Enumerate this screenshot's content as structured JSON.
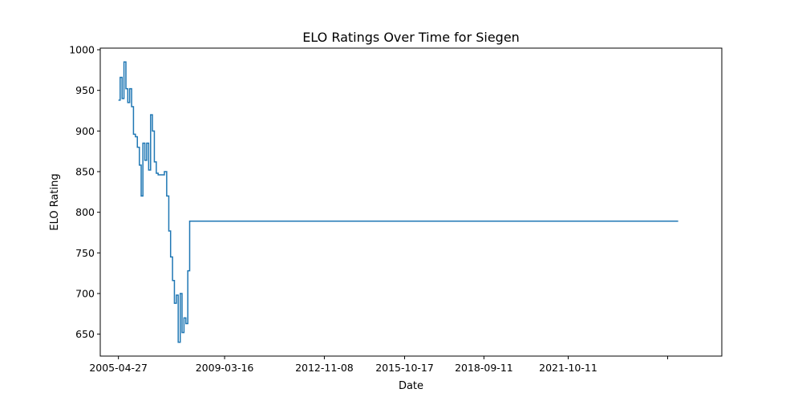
{
  "chart_data": {
    "type": "line",
    "title": "ELO Ratings Over Time for Siegen",
    "xlabel": "Date",
    "ylabel": "ELO Rating",
    "x_ticks": [
      "2005-04-27",
      "2009-03-16",
      "2012-11-08",
      "2015-10-17",
      "2018-09-11",
      "2021-10-11",
      ""
    ],
    "y_ticks": [
      650,
      700,
      750,
      800,
      850,
      900,
      950,
      1000
    ],
    "xlim": [
      "2004-08-27",
      "2027-05-26"
    ],
    "ylim": [
      623,
      1002
    ],
    "grid": false,
    "step": "post",
    "series": [
      {
        "name": "",
        "color": "#1f77b4",
        "points": [
          [
            "2005-04-27",
            938
          ],
          [
            "2005-05-20",
            966
          ],
          [
            "2005-06-15",
            940
          ],
          [
            "2005-07-10",
            985
          ],
          [
            "2005-08-05",
            952
          ],
          [
            "2005-08-30",
            935
          ],
          [
            "2005-09-24",
            952
          ],
          [
            "2005-10-20",
            930
          ],
          [
            "2005-11-14",
            896
          ],
          [
            "2005-12-10",
            893
          ],
          [
            "2006-01-05",
            880
          ],
          [
            "2006-02-01",
            858
          ],
          [
            "2006-02-25",
            820
          ],
          [
            "2006-03-20",
            885
          ],
          [
            "2006-04-15",
            864
          ],
          [
            "2006-05-10",
            885
          ],
          [
            "2006-06-05",
            852
          ],
          [
            "2006-07-01",
            920
          ],
          [
            "2006-07-25",
            900
          ],
          [
            "2006-08-20",
            862
          ],
          [
            "2006-09-15",
            848
          ],
          [
            "2006-10-10",
            846
          ],
          [
            "2006-11-05",
            846
          ],
          [
            "2006-12-01",
            846
          ],
          [
            "2007-01-01",
            850
          ],
          [
            "2007-02-01",
            820
          ],
          [
            "2007-03-01",
            777
          ],
          [
            "2007-03-25",
            745
          ],
          [
            "2007-04-20",
            716
          ],
          [
            "2007-05-15",
            688
          ],
          [
            "2007-06-10",
            698
          ],
          [
            "2007-07-05",
            640
          ],
          [
            "2007-08-01",
            700
          ],
          [
            "2007-08-25",
            652
          ],
          [
            "2007-09-20",
            670
          ],
          [
            "2007-10-15",
            663
          ],
          [
            "2007-11-10",
            728
          ],
          [
            "2007-12-05",
            789
          ],
          [
            "2025-10-20",
            789
          ]
        ]
      }
    ]
  }
}
